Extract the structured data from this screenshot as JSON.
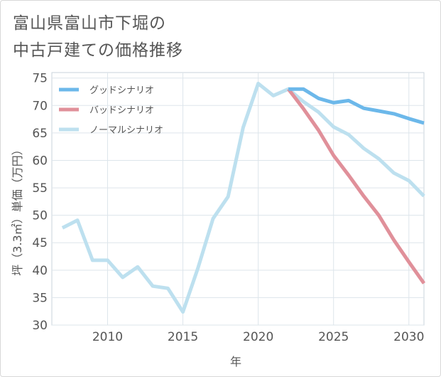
{
  "title_lines": [
    "富山県富山市下堀の",
    "中古戸建ての価格推移"
  ],
  "chart_data": {
    "type": "line",
    "xlabel": "年",
    "ylabel": "坪（3.3㎡）単価（万円）",
    "xlim": [
      2006.3,
      2031
    ],
    "ylim": [
      30,
      76
    ],
    "x_ticks": [
      2010,
      2015,
      2020,
      2025,
      2030
    ],
    "y_ticks": [
      30,
      35,
      40,
      45,
      50,
      55,
      60,
      65,
      70,
      75
    ],
    "grid": true,
    "legend_position": "top-left",
    "series": [
      {
        "name": "グッドシナリオ",
        "color": "#6cb8ea",
        "x": [
          2022,
          2023,
          2024,
          2025,
          2026,
          2027,
          2028,
          2029,
          2030,
          2031
        ],
        "y": [
          73.0,
          73.0,
          71.3,
          70.5,
          70.9,
          69.5,
          69.0,
          68.5,
          67.6,
          66.8
        ]
      },
      {
        "name": "バッドシナリオ",
        "color": "#e0909a",
        "x": [
          2022,
          2023,
          2024,
          2025,
          2026,
          2027,
          2028,
          2029,
          2030,
          2031
        ],
        "y": [
          73.0,
          69.4,
          65.5,
          60.9,
          57.3,
          53.5,
          50.0,
          45.5,
          41.5,
          37.6
        ]
      },
      {
        "name": "ノーマルシナリオ",
        "color": "#bde0ef",
        "x": [
          2007,
          2008,
          2009,
          2010,
          2011,
          2012,
          2013,
          2014,
          2015,
          2016,
          2017,
          2018,
          2019,
          2020,
          2021,
          2022,
          2023,
          2024,
          2025,
          2026,
          2027,
          2028,
          2029,
          2030,
          2031
        ],
        "y": [
          47.7,
          49.1,
          41.8,
          41.8,
          38.7,
          40.6,
          37.1,
          36.7,
          32.4,
          40.4,
          49.4,
          53.4,
          66.0,
          74.0,
          71.8,
          73.0,
          70.7,
          68.8,
          66.1,
          64.7,
          62.2,
          60.3,
          57.7,
          56.3,
          53.5
        ]
      }
    ]
  }
}
